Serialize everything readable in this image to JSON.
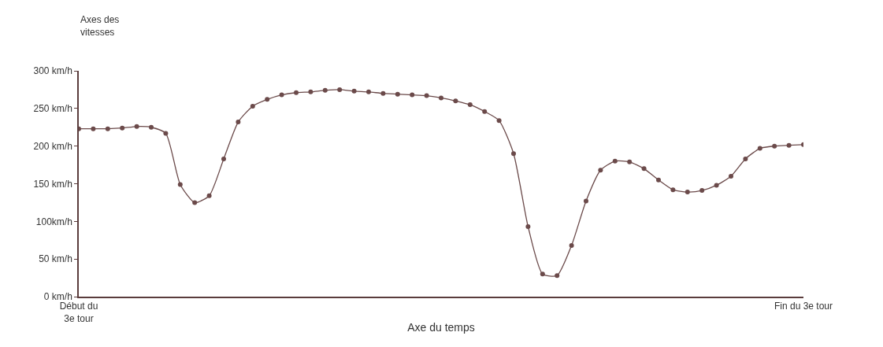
{
  "chart_data": {
    "type": "line",
    "xlabel": "Axe du temps",
    "ylabel": "Axes des\nvitesses",
    "categories": [
      "Début du\n3e tour",
      null,
      null,
      null,
      null,
      null,
      null,
      null,
      null,
      null,
      null,
      null,
      null,
      null,
      null,
      null,
      null,
      null,
      null,
      null,
      null,
      null,
      null,
      null,
      null,
      null,
      null,
      null,
      null,
      null,
      null,
      null,
      null,
      null,
      null,
      null,
      null,
      null,
      null,
      null,
      null,
      null,
      null,
      null,
      null,
      null,
      null,
      null,
      null,
      null,
      "Fin du 3e tour"
    ],
    "series": [
      {
        "color": "#6b4a4a",
        "values": [
          223,
          223,
          223,
          224,
          226,
          225,
          217,
          149,
          125,
          134,
          183,
          232,
          253,
          262,
          268,
          271,
          272,
          274,
          275,
          273,
          272,
          270,
          269,
          268,
          267,
          264,
          260,
          255,
          246,
          234,
          190,
          93,
          30,
          28,
          68,
          127,
          168,
          180,
          179,
          170,
          155,
          142,
          139,
          141,
          148,
          160,
          183,
          197,
          200,
          201,
          202
        ]
      }
    ],
    "ylim": [
      0,
      300
    ],
    "yticks": [
      {
        "value": 0,
        "label": "0 km/h"
      },
      {
        "value": 50,
        "label": "50 km/h"
      },
      {
        "value": 100,
        "label": "100km/h"
      },
      {
        "value": 150,
        "label": "150 km/h"
      },
      {
        "value": 200,
        "label": "200 km/h"
      },
      {
        "value": 250,
        "label": "250 km/h"
      },
      {
        "value": 300,
        "label": "300 km/h"
      }
    ],
    "marker": "circle",
    "line_style": "solid"
  }
}
